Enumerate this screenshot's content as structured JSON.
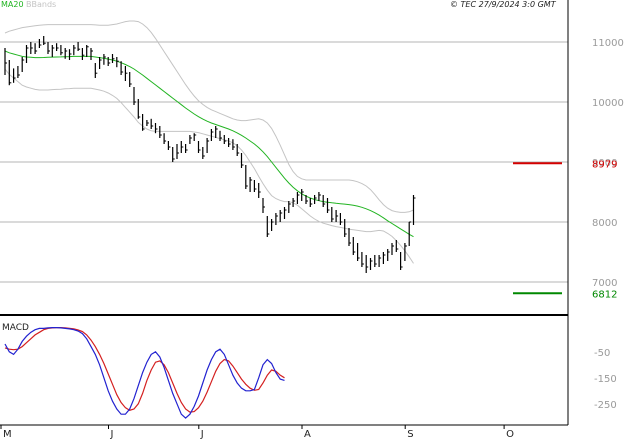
{
  "header": {
    "ma_label": "MA20",
    "bb_label": "BBands",
    "copyright": "© TEC 27/9/2024 3:0 GMT"
  },
  "colors": {
    "ma": "#22b422",
    "bbands": "#c4c4c4",
    "price": "#000000",
    "resistance": "#d40000",
    "support": "#008800",
    "macd": "#2222d0",
    "signal": "#d42020",
    "grid": "#b4b4b4"
  },
  "chart_data": {
    "type": "line",
    "title": "",
    "price_panel": {
      "ylim": [
        6500,
        11500
      ],
      "y_ticks": [
        7000,
        8000,
        9000,
        10000,
        11000
      ],
      "y_tick_labels": [
        "7000",
        "8000",
        "9000",
        "10000",
        "11000"
      ],
      "levels": [
        {
          "label": "8979",
          "value": 8979,
          "color": "resistance"
        },
        {
          "label": "6812",
          "value": 6812,
          "color": "support"
        }
      ],
      "ohlc_bars": [
        [
          10900,
          10450,
          10650
        ],
        [
          10700,
          10280,
          10320
        ],
        [
          10560,
          10320,
          10400
        ],
        [
          10600,
          10400,
          10450
        ],
        [
          10750,
          10500,
          10700
        ],
        [
          10950,
          10650,
          10900
        ],
        [
          11000,
          10800,
          10900
        ],
        [
          10980,
          10800,
          10850
        ],
        [
          11050,
          10900,
          10950
        ],
        [
          11100,
          10950,
          10980
        ],
        [
          11000,
          10800,
          10850
        ],
        [
          10950,
          10750,
          10900
        ],
        [
          10980,
          10850,
          10900
        ],
        [
          10950,
          10780,
          10820
        ],
        [
          10900,
          10720,
          10850
        ],
        [
          10880,
          10700,
          10800
        ],
        [
          10950,
          10780,
          10900
        ],
        [
          11000,
          10850,
          10880
        ],
        [
          10900,
          10700,
          10780
        ],
        [
          10950,
          10750,
          10920
        ],
        [
          10900,
          10700,
          10850
        ],
        [
          10650,
          10400,
          10480
        ],
        [
          10750,
          10550,
          10700
        ],
        [
          10800,
          10620,
          10750
        ],
        [
          10750,
          10600,
          10650
        ],
        [
          10800,
          10650,
          10720
        ],
        [
          10750,
          10580,
          10680
        ],
        [
          10680,
          10450,
          10500
        ],
        [
          10600,
          10350,
          10480
        ],
        [
          10500,
          10250,
          10300
        ],
        [
          10250,
          9950,
          10000
        ],
        [
          10050,
          9720,
          9750
        ],
        [
          9800,
          9520,
          9550
        ],
        [
          9700,
          9600,
          9650
        ],
        [
          9720,
          9550,
          9600
        ],
        [
          9650,
          9480,
          9550
        ],
        [
          9600,
          9400,
          9450
        ],
        [
          9480,
          9300,
          9350
        ],
        [
          9350,
          9200,
          9250
        ],
        [
          9250,
          9000,
          9050
        ],
        [
          9300,
          9050,
          9150
        ],
        [
          9350,
          9150,
          9250
        ],
        [
          9300,
          9150,
          9200
        ],
        [
          9450,
          9300,
          9400
        ],
        [
          9480,
          9350,
          9450
        ],
        [
          9350,
          9150,
          9200
        ],
        [
          9250,
          9050,
          9100
        ],
        [
          9400,
          9150,
          9350
        ],
        [
          9550,
          9350,
          9500
        ],
        [
          9600,
          9400,
          9550
        ],
        [
          9520,
          9350,
          9400
        ],
        [
          9450,
          9300,
          9350
        ],
        [
          9400,
          9250,
          9300
        ],
        [
          9380,
          9200,
          9250
        ],
        [
          9300,
          9100,
          9150
        ],
        [
          9150,
          8900,
          8950
        ],
        [
          8950,
          8550,
          8600
        ],
        [
          8750,
          8500,
          8700
        ],
        [
          8700,
          8500,
          8550
        ],
        [
          8650,
          8400,
          8500
        ],
        [
          8400,
          8150,
          8250
        ],
        [
          8100,
          7750,
          7800
        ],
        [
          8050,
          7850,
          8000
        ],
        [
          8150,
          7950,
          8100
        ],
        [
          8200,
          8000,
          8150
        ],
        [
          8250,
          8050,
          8200
        ],
        [
          8350,
          8150,
          8300
        ],
        [
          8400,
          8250,
          8350
        ],
        [
          8500,
          8300,
          8450
        ],
        [
          8550,
          8350,
          8500
        ],
        [
          8450,
          8300,
          8350
        ],
        [
          8400,
          8250,
          8300
        ],
        [
          8450,
          8300,
          8400
        ],
        [
          8500,
          8350,
          8450
        ],
        [
          8450,
          8250,
          8300
        ],
        [
          8400,
          8150,
          8200
        ],
        [
          8250,
          8000,
          8050
        ],
        [
          8200,
          8000,
          8100
        ],
        [
          8150,
          7950,
          8000
        ],
        [
          8050,
          7750,
          7800
        ],
        [
          7900,
          7600,
          7650
        ],
        [
          7750,
          7450,
          7500
        ],
        [
          7650,
          7350,
          7400
        ],
        [
          7500,
          7250,
          7300
        ],
        [
          7450,
          7150,
          7250
        ],
        [
          7400,
          7200,
          7350
        ],
        [
          7450,
          7250,
          7300
        ],
        [
          7450,
          7250,
          7400
        ],
        [
          7500,
          7300,
          7450
        ],
        [
          7550,
          7350,
          7500
        ],
        [
          7650,
          7450,
          7600
        ],
        [
          7700,
          7500,
          7550
        ],
        [
          7500,
          7200,
          7250
        ],
        [
          7650,
          7350,
          7600
        ],
        [
          8000,
          7600,
          8000
        ],
        [
          8450,
          7950,
          8400
        ]
      ],
      "ma20": [
        10850,
        10820,
        10800,
        10780,
        10760,
        10750,
        10745,
        10740,
        10740,
        10742,
        10745,
        10748,
        10750,
        10752,
        10755,
        10757,
        10760,
        10760,
        10760,
        10760,
        10760,
        10750,
        10740,
        10730,
        10715,
        10700,
        10680,
        10655,
        10625,
        10590,
        10550,
        10500,
        10450,
        10395,
        10340,
        10285,
        10230,
        10175,
        10120,
        10065,
        10010,
        9955,
        9900,
        9850,
        9800,
        9755,
        9715,
        9680,
        9650,
        9625,
        9600,
        9575,
        9550,
        9520,
        9485,
        9445,
        9400,
        9350,
        9300,
        9240,
        9170,
        9090,
        9000,
        8910,
        8820,
        8730,
        8650,
        8580,
        8520,
        8470,
        8430,
        8400,
        8375,
        8355,
        8340,
        8330,
        8320,
        8312,
        8305,
        8298,
        8290,
        8280,
        8265,
        8245,
        8220,
        8190,
        8155,
        8115,
        8070,
        8020,
        7975,
        7930,
        7885,
        7840,
        7795,
        7755
      ],
      "bb_upper": [
        11150,
        11180,
        11200,
        11220,
        11240,
        11250,
        11260,
        11270,
        11280,
        11285,
        11290,
        11290,
        11290,
        11290,
        11290,
        11290,
        11290,
        11290,
        11290,
        11290,
        11290,
        11285,
        11280,
        11280,
        11280,
        11290,
        11300,
        11320,
        11340,
        11350,
        11350,
        11340,
        11300,
        11240,
        11160,
        11060,
        10950,
        10840,
        10730,
        10620,
        10510,
        10400,
        10290,
        10190,
        10100,
        10020,
        9960,
        9910,
        9870,
        9840,
        9810,
        9780,
        9750,
        9720,
        9700,
        9690,
        9690,
        9700,
        9710,
        9720,
        9700,
        9650,
        9560,
        9430,
        9280,
        9120,
        8960,
        8840,
        8760,
        8720,
        8700,
        8700,
        8700,
        8700,
        8700,
        8700,
        8700,
        8700,
        8700,
        8700,
        8700,
        8690,
        8670,
        8640,
        8600,
        8540,
        8460,
        8370,
        8290,
        8230,
        8190,
        8170,
        8160,
        8160,
        8170,
        8200
      ],
      "bb_lower": [
        10550,
        10460,
        10400,
        10340,
        10280,
        10250,
        10230,
        10210,
        10200,
        10200,
        10200,
        10206,
        10210,
        10214,
        10220,
        10224,
        10230,
        10230,
        10230,
        10230,
        10230,
        10215,
        10200,
        10180,
        10150,
        10110,
        10060,
        9990,
        9910,
        9830,
        9750,
        9660,
        9600,
        9550,
        9520,
        9510,
        9510,
        9510,
        9510,
        9510,
        9510,
        9510,
        9510,
        9510,
        9500,
        9490,
        9470,
        9450,
        9430,
        9410,
        9390,
        9370,
        9350,
        9320,
        9270,
        9200,
        9110,
        9000,
        8890,
        8760,
        8640,
        8530,
        8440,
        8390,
        8360,
        8340,
        8340,
        8320,
        8280,
        8220,
        8160,
        8100,
        8050,
        8010,
        7980,
        7960,
        7940,
        7924,
        7910,
        7896,
        7880,
        7870,
        7860,
        7850,
        7840,
        7840,
        7850,
        7860,
        7850,
        7810,
        7760,
        7690,
        7610,
        7520,
        7420,
        7310
      ]
    },
    "macd_panel": {
      "ylim": [
        -320,
        80
      ],
      "y_ticks": [
        -50,
        -150,
        -250
      ],
      "y_tick_labels": [
        "-50",
        "-150",
        "-250"
      ],
      "label": "MACD",
      "macd": [
        -20,
        -50,
        -60,
        -40,
        -10,
        10,
        25,
        35,
        40,
        40,
        42,
        43,
        43,
        42,
        40,
        38,
        35,
        30,
        20,
        0,
        -30,
        -60,
        -100,
        -150,
        -200,
        -240,
        -270,
        -290,
        -290,
        -270,
        -230,
        -180,
        -130,
        -90,
        -60,
        -50,
        -70,
        -110,
        -160,
        -210,
        -250,
        -290,
        -305,
        -290,
        -260,
        -220,
        -170,
        -120,
        -80,
        -50,
        -40,
        -60,
        -100,
        -140,
        -170,
        -190,
        -200,
        -200,
        -195,
        -150,
        -100,
        -80,
        -95,
        -130,
        -155,
        -160
      ],
      "signal": [
        -35,
        -40,
        -42,
        -40,
        -30,
        -15,
        0,
        15,
        25,
        35,
        40,
        42,
        43,
        43,
        42,
        40,
        38,
        34,
        28,
        15,
        -5,
        -30,
        -60,
        -95,
        -135,
        -175,
        -215,
        -245,
        -265,
        -275,
        -270,
        -250,
        -210,
        -160,
        -120,
        -90,
        -85,
        -100,
        -130,
        -170,
        -210,
        -245,
        -270,
        -282,
        -280,
        -265,
        -240,
        -205,
        -165,
        -125,
        -95,
        -80,
        -85,
        -105,
        -130,
        -155,
        -175,
        -190,
        -198,
        -195,
        -170,
        -140,
        -120,
        -125,
        -140,
        -150
      ]
    },
    "x_axis": {
      "month_labels": [
        "M",
        "J",
        "J",
        "A",
        "S",
        "O"
      ],
      "month_bar_index": [
        0,
        25,
        46,
        70,
        94,
        117
      ]
    }
  }
}
